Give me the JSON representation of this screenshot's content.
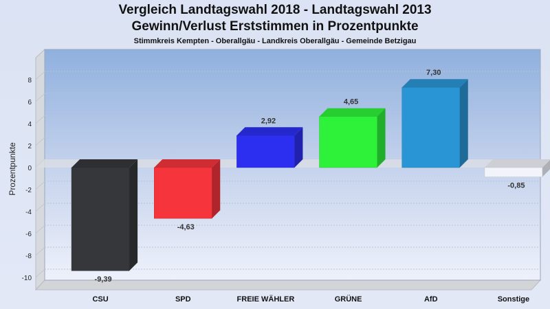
{
  "chart_data": {
    "type": "bar",
    "title": "Vergleich Landtagswahl 2018 - Landtagswahl 2013",
    "subtitle": "Gewinn/Verlust Erststimmen in Prozentpunkte",
    "caption": "Stimmkreis Kempten - Oberallgäu - Landkreis Oberallgäu - Gemeinde Betzigau",
    "ylabel": "Prozentpunkte",
    "xlabel": "",
    "ylim": [
      -11,
      10
    ],
    "yticks": [
      8,
      6,
      4,
      2,
      0,
      -2,
      -4,
      -6,
      -8,
      -10
    ],
    "grid": true,
    "categories": [
      "CSU",
      "SPD",
      "FREIE WÄHLER",
      "GRÜNE",
      "AfD",
      "Sonstige"
    ],
    "values": [
      -9.39,
      -4.63,
      2.92,
      4.65,
      7.3,
      -0.85
    ],
    "value_labels": [
      "-9,39",
      "-4,63",
      "2,92",
      "4,65",
      "7,30",
      "-0,85"
    ],
    "colors": [
      "#35373b",
      "#f5343c",
      "#2c2ff0",
      "#2ef23a",
      "#2a95d4",
      "#f2f4fb"
    ]
  }
}
